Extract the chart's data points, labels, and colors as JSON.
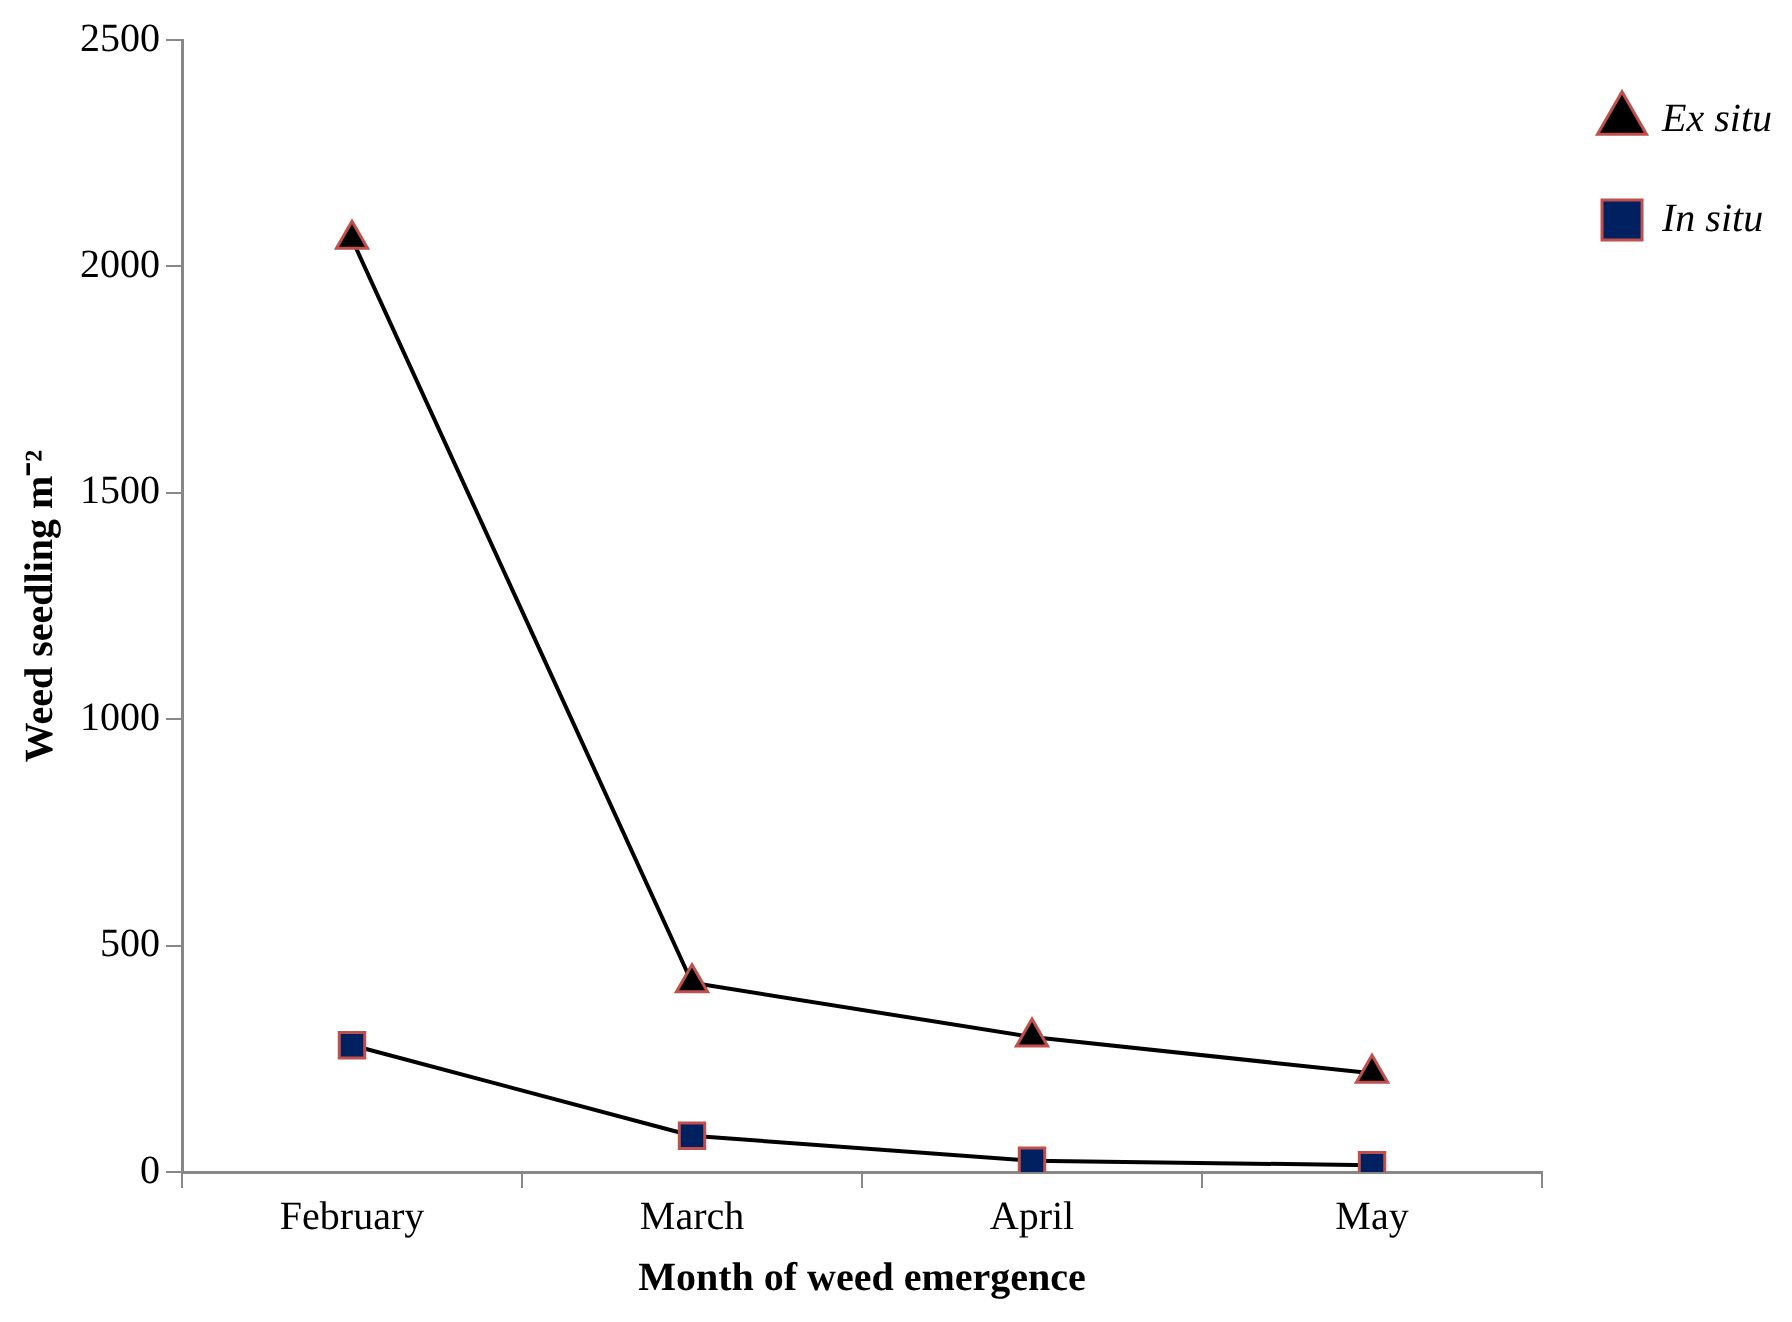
{
  "chart_data": {
    "type": "line",
    "xlabel": "Month of weed emergence",
    "ylabel": "Weed seedling m⁻²",
    "categories": [
      "February",
      "March",
      "April",
      "May"
    ],
    "series": [
      {
        "name": "Ex situ",
        "color": "#000000",
        "marker": "triangle",
        "values": [
          2060,
          418,
          298,
          218
        ]
      },
      {
        "name": "In situ",
        "color": "#002060",
        "marker": "square",
        "values": [
          280,
          80,
          25,
          15
        ]
      }
    ],
    "ylim": [
      0,
      2500
    ],
    "yticks": [
      0,
      500,
      1000,
      1500,
      2000,
      2500
    ],
    "grid": false,
    "legend": "right"
  }
}
